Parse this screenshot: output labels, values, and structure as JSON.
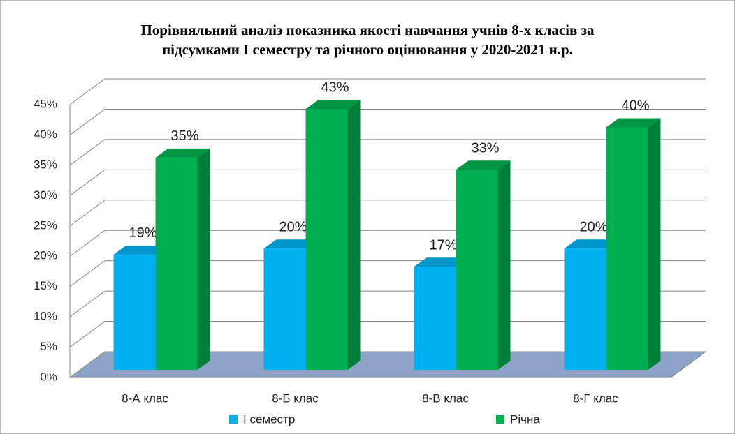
{
  "chart_data": {
    "type": "bar3d",
    "title": [
      "Порівняльний аналіз показника якості навчання учнів 8-х класів за",
      "підсумками І семестру та річного оцінювання у 2020-2021 н.р."
    ],
    "categories": [
      "8-А клас",
      "8-Б клас",
      "8-В клас",
      "8-Г клас"
    ],
    "series": [
      {
        "name": "І семестр",
        "color": "#00b0f0",
        "values": [
          19,
          20,
          17,
          20
        ],
        "value_labels": [
          "19%",
          "20%",
          "17%",
          "20%"
        ]
      },
      {
        "name": "Річна",
        "color": "#00b050",
        "values": [
          35,
          43,
          33,
          40
        ],
        "value_labels": [
          "35%",
          "43%",
          "33%",
          "40%"
        ]
      }
    ],
    "ylim": [
      0,
      45
    ],
    "yticks": [
      {
        "value": 0,
        "label": "0%"
      },
      {
        "value": 5,
        "label": "5%"
      },
      {
        "value": 10,
        "label": "10%"
      },
      {
        "value": 15,
        "label": "15%"
      },
      {
        "value": 20,
        "label": "20%"
      },
      {
        "value": 25,
        "label": "25%"
      },
      {
        "value": 30,
        "label": "30%"
      },
      {
        "value": 35,
        "label": "35%"
      },
      {
        "value": 40,
        "label": "40%"
      },
      {
        "value": 45,
        "label": "45%"
      }
    ],
    "grid": true,
    "legend": "bottom"
  }
}
